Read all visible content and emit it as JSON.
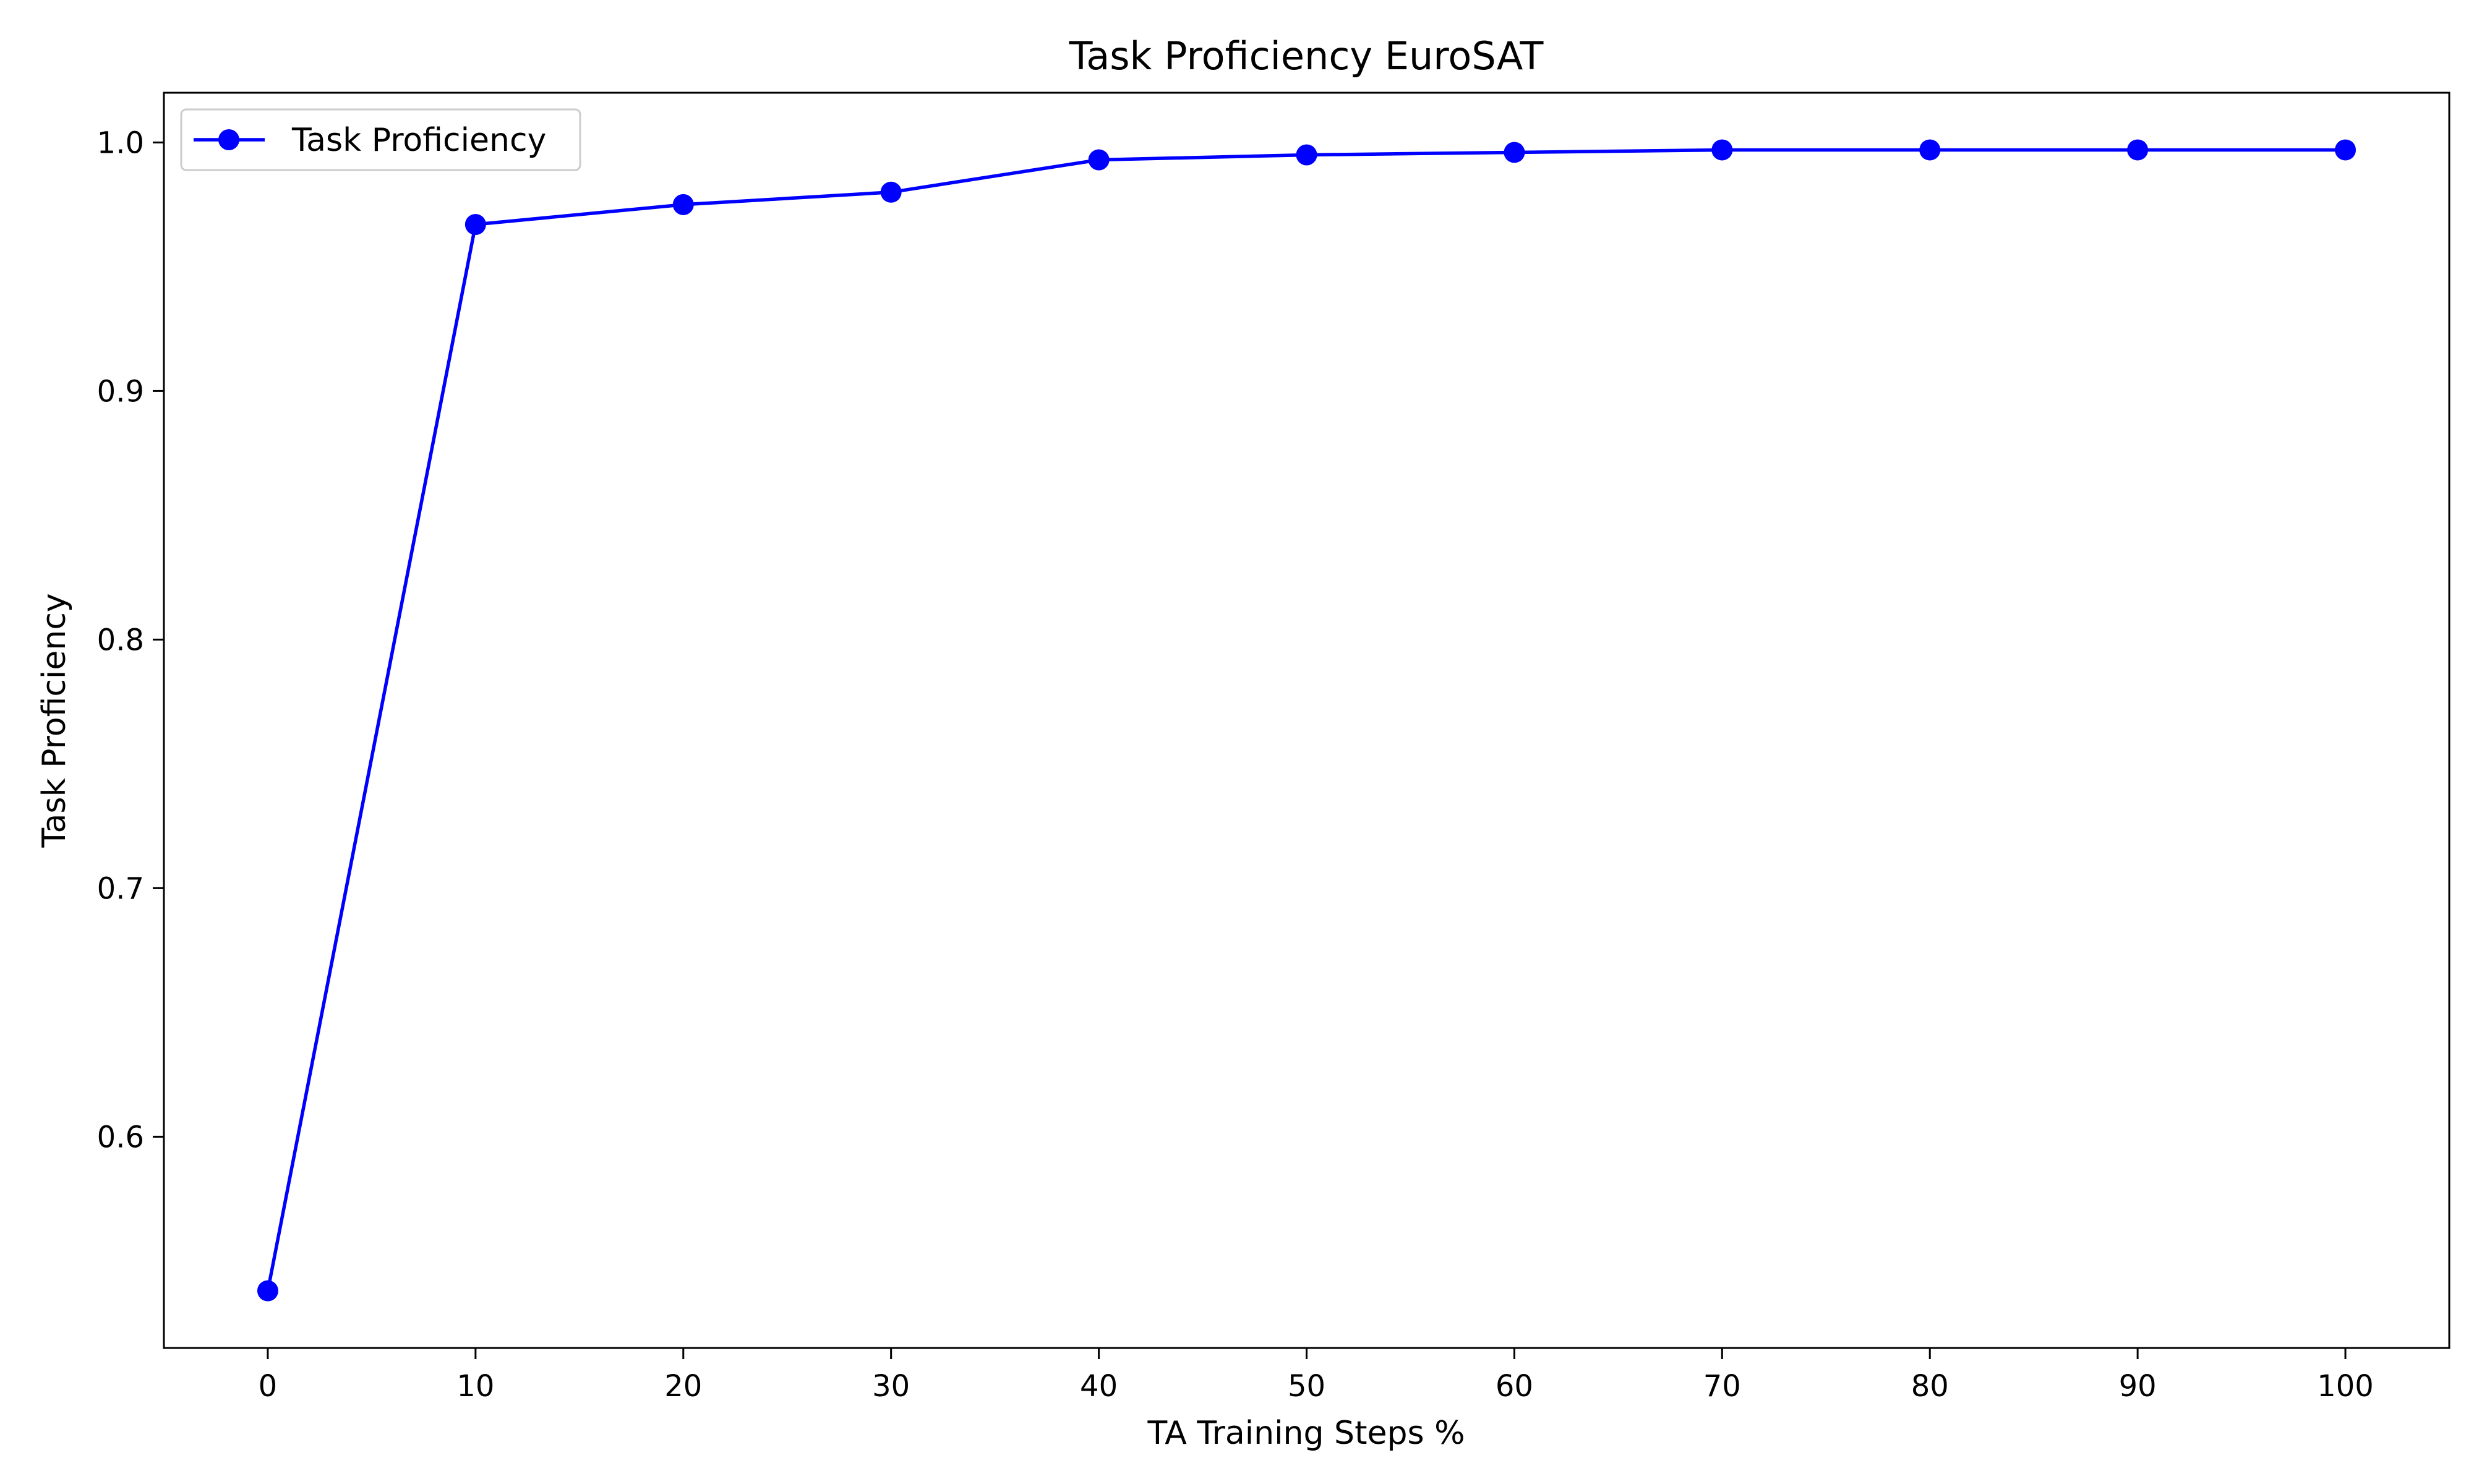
{
  "chart_data": {
    "type": "line",
    "title": "Task Proficiency EuroSAT",
    "xlabel": "TA Training Steps %",
    "ylabel": "Task Proficiency",
    "xlim": [
      -5,
      105
    ],
    "ylim": [
      0.515,
      1.02
    ],
    "xticks": [
      "0",
      "10",
      "20",
      "30",
      "40",
      "50",
      "60",
      "70",
      "80",
      "90",
      "100"
    ],
    "yticks": [
      "0.6",
      "0.7",
      "0.8",
      "0.9",
      "1.0"
    ],
    "grid": false,
    "legend_position": "top-left",
    "series": [
      {
        "name": "Task Proficiency",
        "color": "#0000ff",
        "marker": "circle",
        "x": [
          0,
          10,
          20,
          30,
          40,
          50,
          60,
          70,
          80,
          90,
          100
        ],
        "y": [
          0.538,
          0.967,
          0.975,
          0.98,
          0.993,
          0.995,
          0.996,
          0.997,
          0.997,
          0.997,
          0.997
        ]
      }
    ]
  }
}
